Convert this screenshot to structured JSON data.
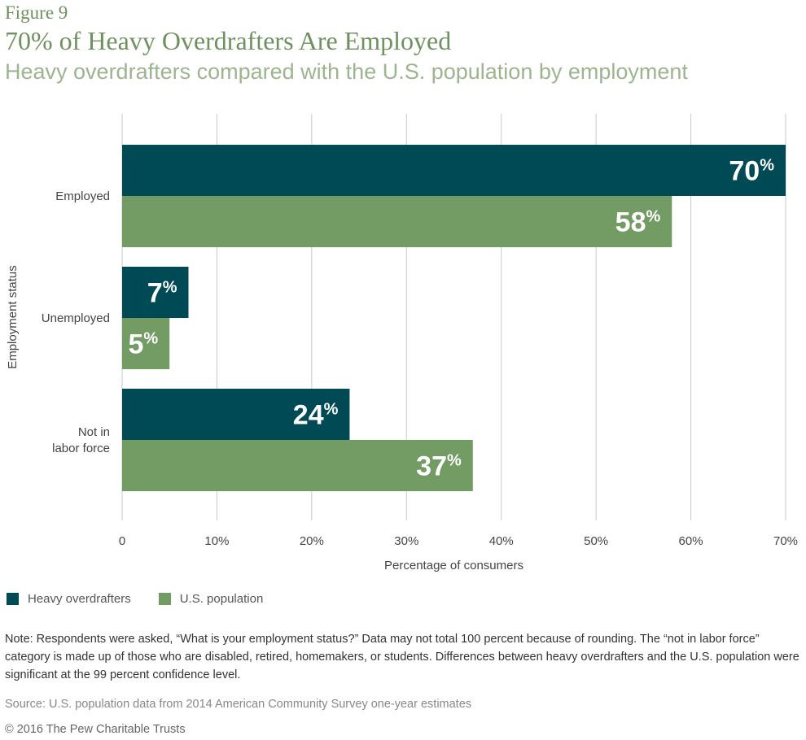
{
  "figure_label": "Figure 9",
  "title": "70% of Heavy Overdrafters Are Employed",
  "subtitle": "Heavy overdrafters compared with the U.S. population by employment",
  "colors": {
    "heavy": "#004a55",
    "us": "#739b64",
    "grid": "#c9c9c9",
    "axis_text": "#444444",
    "label_text": "#ffffff"
  },
  "chart_data": {
    "type": "bar",
    "orientation": "horizontal",
    "categories": [
      "Employed",
      "Unemployed",
      "Not in labor force"
    ],
    "category_lines": [
      [
        "Employed"
      ],
      [
        "Unemployed"
      ],
      [
        "Not in",
        "labor force"
      ]
    ],
    "series": [
      {
        "name": "Heavy overdrafters",
        "values": [
          70,
          7,
          24
        ],
        "labels": [
          "70",
          "7",
          "24"
        ]
      },
      {
        "name": "U.S. population",
        "values": [
          58,
          5,
          37
        ],
        "labels": [
          "58",
          "5",
          "37"
        ]
      }
    ],
    "value_suffix": "%",
    "xlim": [
      0,
      70
    ],
    "xticks": [
      0,
      10,
      20,
      30,
      40,
      50,
      60,
      70
    ],
    "xtick_labels": [
      "0",
      "10%",
      "20%",
      "30%",
      "40%",
      "50%",
      "60%",
      "70%"
    ],
    "xlabel": "Percentage of consumers",
    "ylabel": "Employment status",
    "grid": true
  },
  "legend": {
    "items": [
      {
        "label": "Heavy overdrafters"
      },
      {
        "label": "U.S. population"
      }
    ]
  },
  "note": "Note: Respondents were asked, “What is your employment status?” Data may not total 100 percent because of rounding. The “not in labor force” category is made up of those who are disabled, retired, homemakers, or students. Differences between heavy overdrafters and the U.S. population were significant at the 99 percent confidence level.",
  "source": "Source: U.S. population data from 2014 American Community Survey one-year estimates",
  "copyright": "© 2016 The Pew Charitable Trusts"
}
